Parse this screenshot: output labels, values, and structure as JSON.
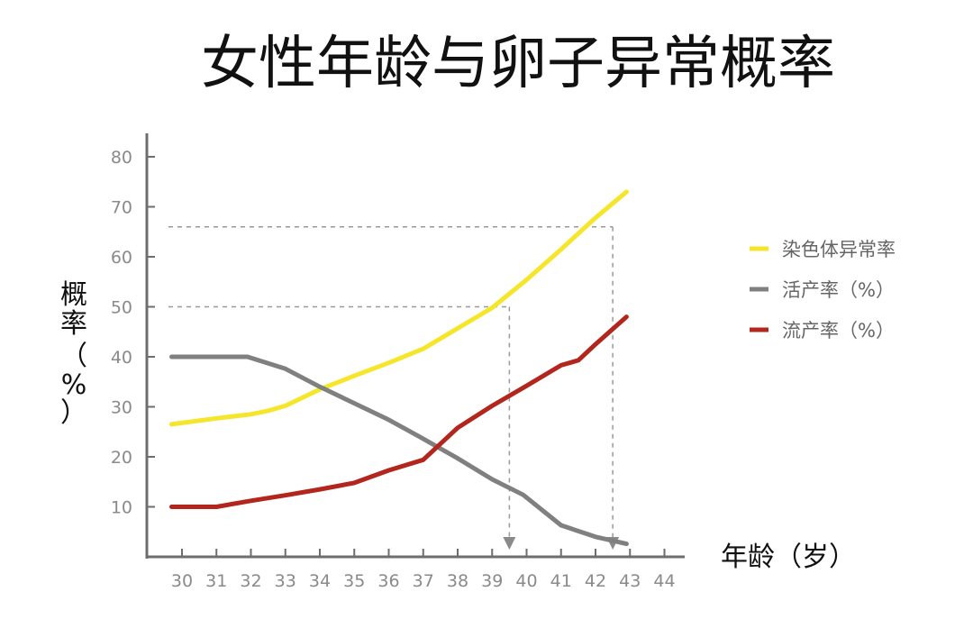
{
  "chart_data": {
    "type": "line",
    "title": "女性年龄与卵子异常概率",
    "xlabel": "年龄（岁）",
    "ylabel_chars": [
      "概",
      "率",
      "（",
      "%",
      "）"
    ],
    "x": [
      30,
      31,
      32,
      33,
      34,
      35,
      36,
      37,
      38,
      39,
      40,
      41,
      42,
      43,
      44
    ],
    "x_ticks": [
      "30",
      "31",
      "32",
      "33",
      "34",
      "35",
      "36",
      "37",
      "38",
      "39",
      "40",
      "41",
      "42",
      "43",
      "44"
    ],
    "ylim": [
      0,
      80
    ],
    "y_ticks": [
      "10",
      "20",
      "30",
      "40",
      "50",
      "60",
      "70",
      "80"
    ],
    "series": [
      {
        "name": "染色体异常率",
        "color": "#f5e62b",
        "points": [
          [
            29.7,
            26.5
          ],
          [
            31,
            27.7
          ],
          [
            32,
            28.5
          ],
          [
            32.5,
            29.2
          ],
          [
            33,
            30.2
          ],
          [
            34,
            33.5
          ],
          [
            35,
            36.2
          ],
          [
            36,
            38.8
          ],
          [
            37,
            41.6
          ],
          [
            38,
            45.7
          ],
          [
            39,
            49.8
          ],
          [
            40,
            55.4
          ],
          [
            41,
            61.5
          ],
          [
            42,
            67.8
          ],
          [
            42.9,
            73.0
          ]
        ]
      },
      {
        "name": "活产率（%）",
        "color": "#808080",
        "points": [
          [
            29.7,
            40
          ],
          [
            31,
            40
          ],
          [
            31.9,
            40
          ],
          [
            33,
            37.6
          ],
          [
            34,
            34.0
          ],
          [
            35,
            30.7
          ],
          [
            36,
            27.4
          ],
          [
            36.9,
            24.0
          ],
          [
            38,
            19.7
          ],
          [
            39,
            15.5
          ],
          [
            39.9,
            12.4
          ],
          [
            41,
            6.3
          ],
          [
            42,
            4.0
          ],
          [
            42.9,
            2.6
          ]
        ]
      },
      {
        "name": "流产率（%）",
        "color": "#b3261e",
        "points": [
          [
            29.7,
            10
          ],
          [
            31,
            10
          ],
          [
            32,
            11.2
          ],
          [
            33,
            12.3
          ],
          [
            34,
            13.5
          ],
          [
            35,
            14.8
          ],
          [
            36,
            17.3
          ],
          [
            37,
            19.4
          ],
          [
            38,
            25.8
          ],
          [
            39,
            30.2
          ],
          [
            40,
            34.2
          ],
          [
            41,
            38.3
          ],
          [
            41.5,
            39.3
          ],
          [
            42,
            42.5
          ],
          [
            42.9,
            48.0
          ]
        ]
      }
    ],
    "reference_lines": [
      {
        "x": 39.5,
        "y": 50
      },
      {
        "x": 42.5,
        "y": 66
      }
    ],
    "legend": "right",
    "grid": false
  }
}
